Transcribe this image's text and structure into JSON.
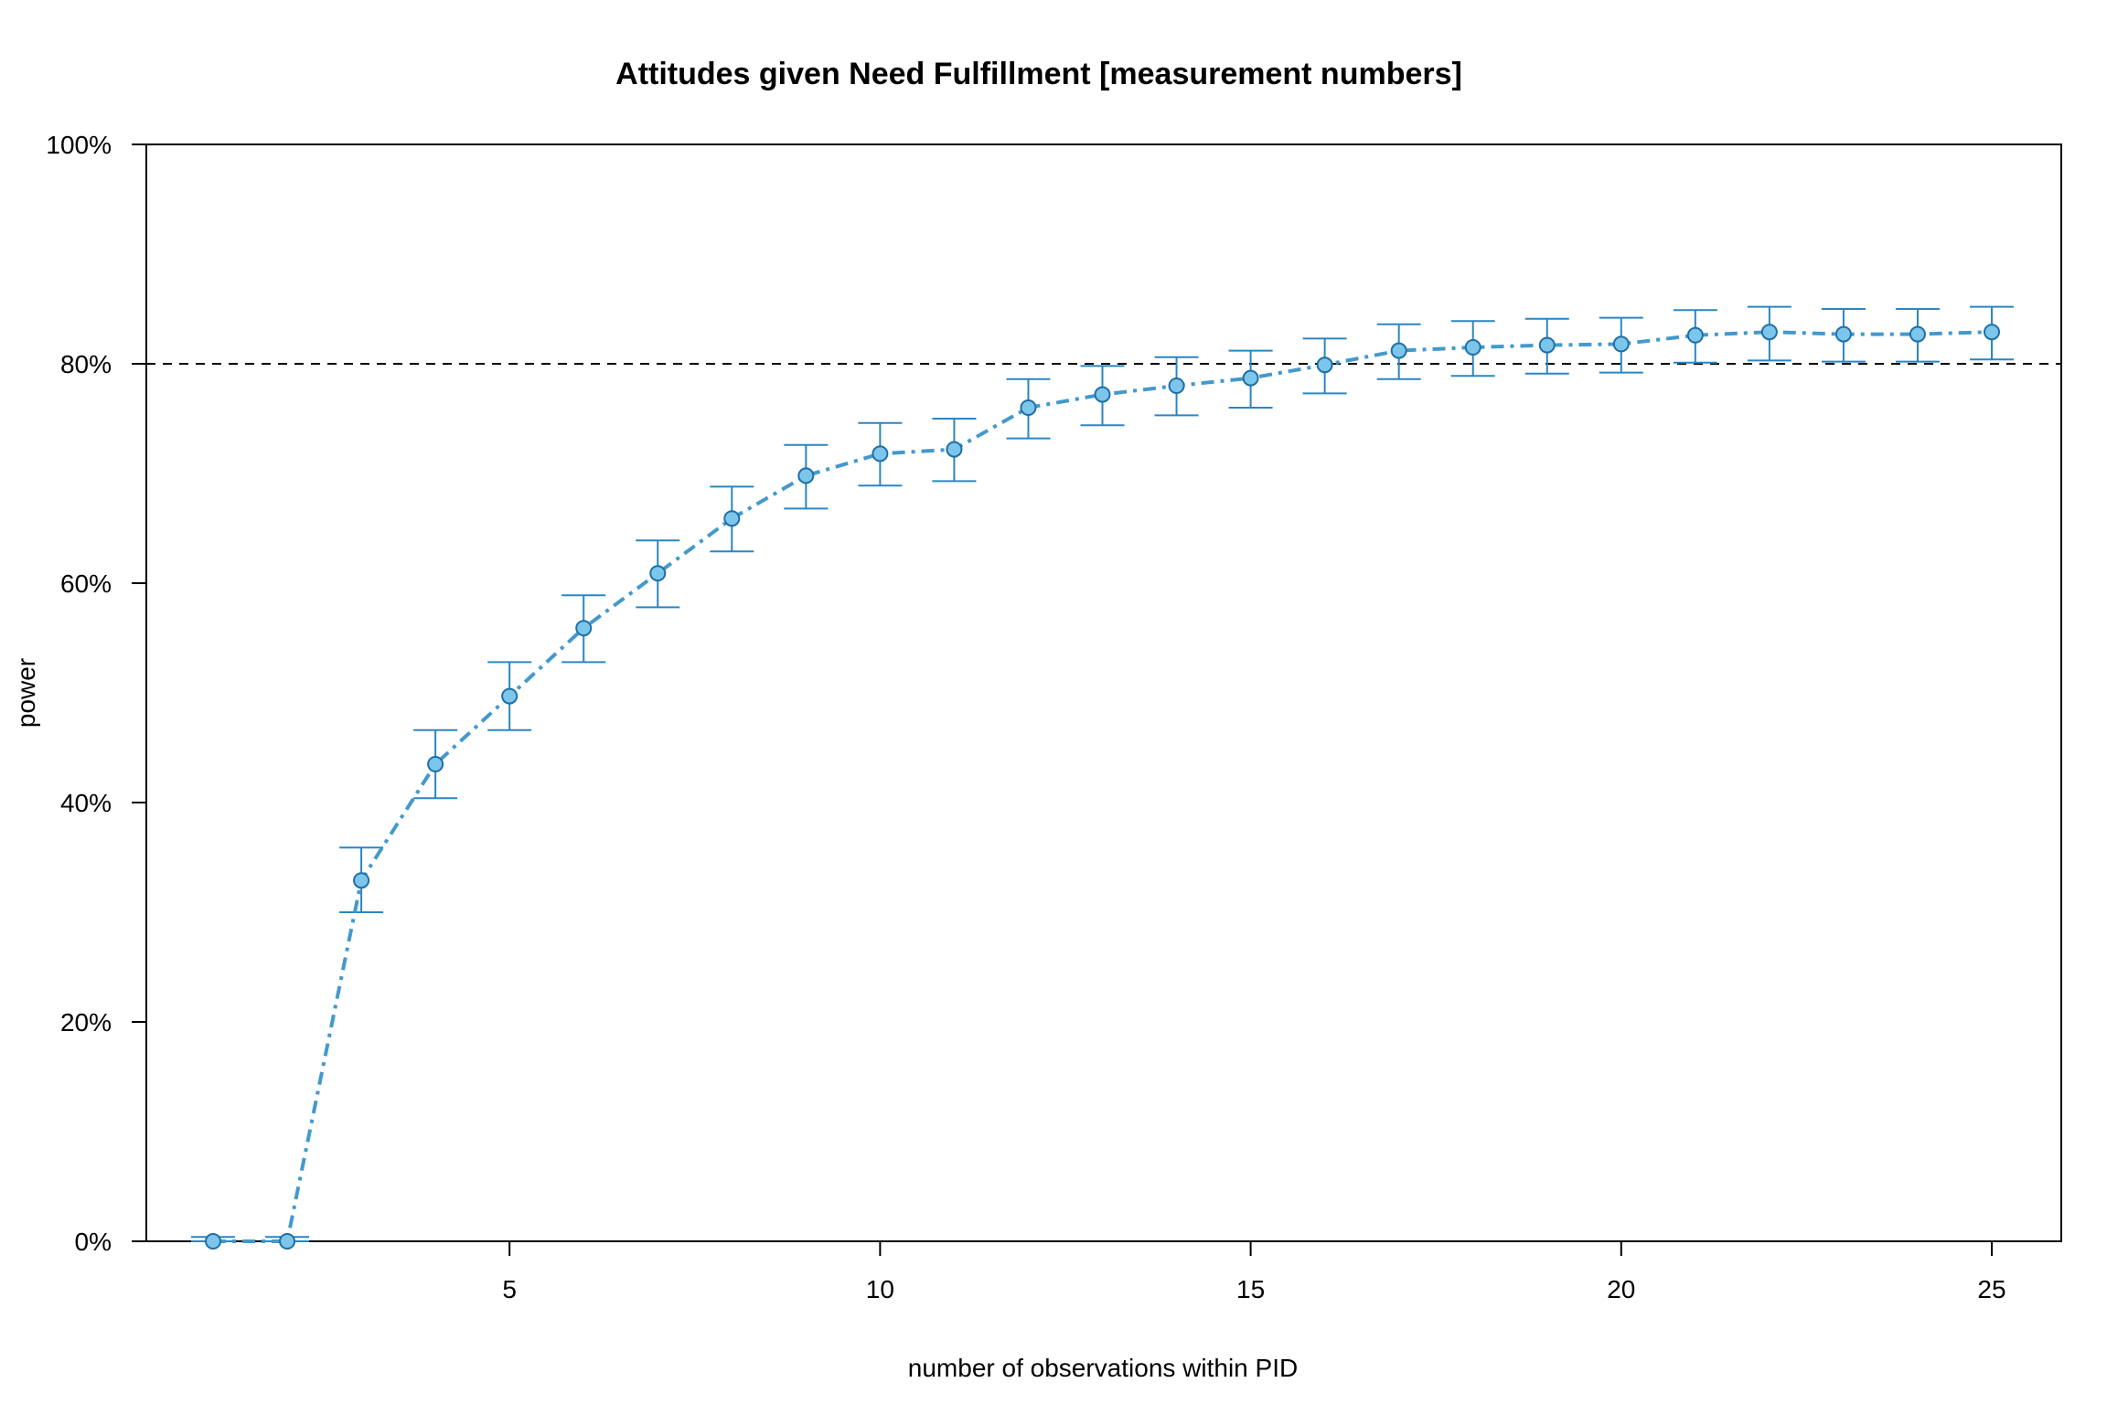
{
  "chart_data": {
    "type": "line",
    "title": "Attitudes given Need Fulfillment [measurement numbers]",
    "xlabel": "number of observations within PID",
    "ylabel": "power",
    "xlim": [
      0,
      26
    ],
    "ylim": [
      0,
      100
    ],
    "x_ticks": [
      5,
      10,
      15,
      20,
      25
    ],
    "y_ticks": [
      0,
      20,
      40,
      60,
      80,
      100
    ],
    "y_tick_suffix": "%",
    "reference_line": 80,
    "colors": {
      "line": "#4499cc",
      "errorbar": "#2b86c2",
      "marker_fill": "#7cc6ec",
      "marker_stroke": "#1f6fa6"
    },
    "series": [
      {
        "x": [
          1,
          2,
          3,
          4,
          5,
          6,
          7,
          8,
          9,
          10,
          11,
          12,
          13,
          14,
          15,
          16,
          17,
          18,
          19,
          20,
          21,
          22,
          23,
          24,
          25
        ],
        "y": [
          0.0,
          0.0,
          32.9,
          43.5,
          49.7,
          55.9,
          60.9,
          65.9,
          69.8,
          71.8,
          72.2,
          76.0,
          77.2,
          78.0,
          78.7,
          79.9,
          81.2,
          81.5,
          81.7,
          81.8,
          82.6,
          82.9,
          82.7,
          82.7,
          82.9
        ],
        "lower": [
          0.0,
          0.0,
          30.0,
          40.4,
          46.6,
          52.8,
          57.8,
          62.9,
          66.8,
          68.9,
          69.3,
          73.2,
          74.4,
          75.3,
          76.0,
          77.3,
          78.6,
          78.9,
          79.1,
          79.2,
          80.1,
          80.3,
          80.2,
          80.2,
          80.4
        ],
        "upper": [
          0.4,
          0.4,
          35.9,
          46.6,
          52.8,
          58.9,
          63.9,
          68.8,
          72.6,
          74.6,
          75.0,
          78.6,
          79.8,
          80.6,
          81.2,
          82.3,
          83.6,
          83.9,
          84.1,
          84.2,
          84.9,
          85.2,
          85.0,
          85.0,
          85.2
        ]
      }
    ]
  }
}
